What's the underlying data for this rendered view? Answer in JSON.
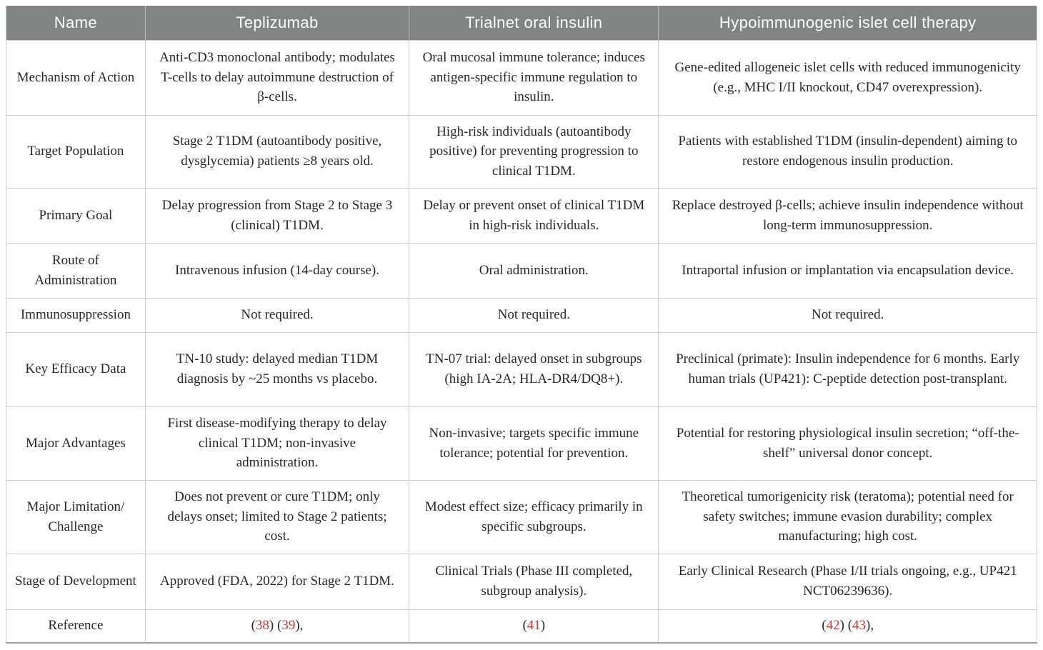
{
  "table": {
    "colors": {
      "header_background": "#828383",
      "grid_border": "#cbcdcd",
      "reference_red": "#c9342f",
      "body_text": "#272727"
    },
    "columns": [
      "Name",
      "Teplizumab",
      "Trialnet oral insulin",
      "Hypoimmunogenic islet cell therapy"
    ],
    "rows": [
      {
        "label": "Mechanism of Action",
        "cells": [
          "Anti-CD3 monoclonal antibody; modulates T-cells to delay autoimmune destruction of β-cells.",
          "Oral mucosal immune tolerance; induces antigen-specific immune regulation to insulin.",
          "Gene-edited allogeneic islet cells with reduced immunogenicity (e.g., MHC I/II knockout, CD47 overexpression)."
        ]
      },
      {
        "label": "Target Population",
        "cells": [
          "Stage 2 T1DM (autoantibody positive, dysglycemia) patients ≥8 years old.",
          "High-risk individuals (autoantibody positive) for preventing progression to clinical T1DM.",
          "Patients with established T1DM (insulin-dependent) aiming to restore endogenous insulin production."
        ]
      },
      {
        "label": "Primary Goal",
        "cells": [
          "Delay progression from Stage 2 to Stage 3 (clinical) T1DM.",
          "Delay or prevent onset of clinical T1DM in high-risk individuals.",
          "Replace destroyed β-cells; achieve insulin independence without long-term immunosuppression."
        ]
      },
      {
        "label": "Route of Administration",
        "cells": [
          "Intravenous infusion (14-day course).",
          "Oral administration.",
          "Intraportal infusion or implantation via encapsulation device."
        ]
      },
      {
        "label": "Immunosuppression",
        "cells": [
          "Not required.",
          "Not required.",
          "Not required."
        ]
      },
      {
        "label": "Key Efficacy Data",
        "cells": [
          "TN-10 study: delayed median T1DM diagnosis by ~25 months vs placebo.",
          "TN-07 trial: delayed onset in subgroups (high IA-2A; HLA-DR4/​DQ8+).",
          "Preclinical (primate): Insulin independence for 6 months. Early human trials (UP421): C-peptide detection post-transplant."
        ]
      },
      {
        "label": "Major Advantages",
        "cells": [
          "First disease-modifying therapy to delay clinical T1DM; non-invasive administration.",
          "Non-invasive; targets specific immune tolerance; potential for prevention.",
          "Potential for restoring physiological insulin secretion; “off-the-shelf” universal donor concept."
        ]
      },
      {
        "label": "Major Limitation/​Challenge",
        "cells": [
          "Does not prevent or cure T1DM; only delays onset; limited to Stage 2 patients; cost.",
          "Modest effect size; efficacy primarily in specific subgroups.",
          "Theoretical tumorigenicity risk (teratoma); potential need for safety switches; immune evasion durability; complex manufacturing; high cost."
        ]
      },
      {
        "label": "Stage of Development",
        "cells": [
          "Approved (FDA, 2022) for Stage 2 T1DM.",
          "Clinical Trials (Phase III completed, subgroup analysis).",
          "Early Clinical Research (Phase I/II trials ongoing, e.g., UP421 NCT06239636)."
        ]
      },
      {
        "label": "Reference",
        "cells": [
          {
            "refs": [
              "38",
              "39"
            ],
            "trailing_comma": true
          },
          {
            "refs": [
              "41"
            ],
            "trailing_comma": false
          },
          {
            "refs": [
              "42",
              "43"
            ],
            "trailing_comma": true
          }
        ]
      }
    ]
  }
}
